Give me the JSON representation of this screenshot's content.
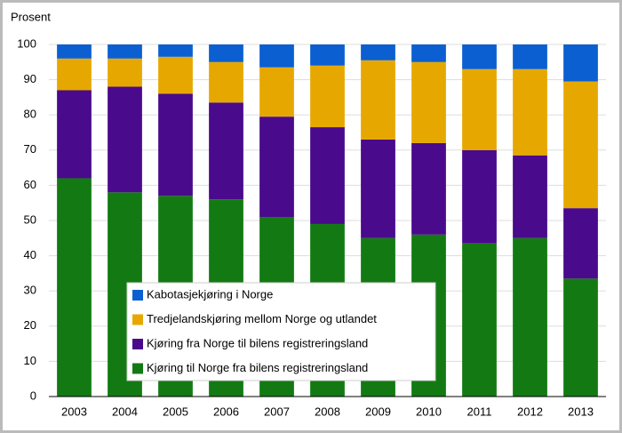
{
  "chart_data": {
    "type": "stacked-bar",
    "y_label": "Prosent",
    "categories": [
      "2003",
      "2004",
      "2005",
      "2006",
      "2007",
      "2008",
      "2009",
      "2010",
      "2011",
      "2012",
      "2013"
    ],
    "series": [
      {
        "name": "Kabotasjekjøring i Norge",
        "color": "#0b5fd1",
        "values": [
          4,
          4,
          3.5,
          5,
          6.5,
          6,
          4.5,
          5,
          7,
          7,
          10.5
        ]
      },
      {
        "name": "Tredjelandskjøring mellom Norge og utlandet",
        "color": "#e6a800",
        "values": [
          9,
          8,
          10.5,
          11.5,
          14,
          17.5,
          22.5,
          23,
          23,
          24.5,
          36
        ]
      },
      {
        "name": "Kjøring fra Norge til bilens registreringsland",
        "color": "#4a0a8c",
        "values": [
          25,
          30,
          29,
          27.5,
          28.5,
          27.5,
          28,
          26,
          26.5,
          23.5,
          20
        ]
      },
      {
        "name": "Kjøring til Norge fra bilens registreringsland",
        "color": "#137a13",
        "values": [
          62,
          58,
          57,
          56,
          51,
          49,
          45,
          46,
          43.5,
          45,
          33.5
        ]
      }
    ],
    "ylim": [
      0,
      100
    ],
    "yticks": [
      0,
      10,
      20,
      30,
      40,
      50,
      60,
      70,
      80,
      90,
      100
    ],
    "grid": true
  }
}
